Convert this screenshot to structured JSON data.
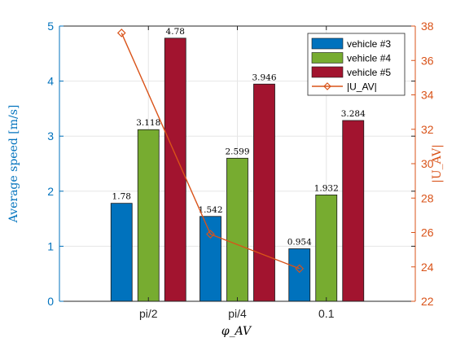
{
  "chart_data": {
    "type": "bar",
    "categories": [
      "pi/2",
      "pi/4",
      "0.1"
    ],
    "series": [
      {
        "name": "vehicle #3",
        "values": [
          1.78,
          1.542,
          0.954
        ],
        "color": "#0072BD"
      },
      {
        "name": "vehicle #4",
        "values": [
          3.118,
          2.599,
          1.932
        ],
        "color": "#77AC30"
      },
      {
        "name": "vehicle #5",
        "values": [
          4.78,
          3.946,
          3.284
        ],
        "color": "#A2142F"
      }
    ],
    "data_labels": [
      [
        "1.78",
        "1.542",
        "0.954"
      ],
      [
        "3.118",
        "2.599",
        "1.932"
      ],
      [
        "4.78",
        "3.946",
        "3.284"
      ]
    ],
    "line_series": {
      "name": "|U_AV|",
      "values": [
        37.6,
        25.9,
        23.9
      ],
      "color": "#D95319",
      "axis": "right"
    },
    "xlabel": "φ_AV",
    "ylabel": "Average speed [m/s]",
    "ylabel_right": "|U_AV|",
    "ylim": [
      0,
      5
    ],
    "ylim_right": [
      22,
      38
    ],
    "yticks": [
      "0",
      "1",
      "2",
      "3",
      "4",
      "5"
    ],
    "yticks_right": [
      "22",
      "24",
      "26",
      "28",
      "30",
      "32",
      "34",
      "36",
      "38"
    ],
    "grid": true,
    "legend_position": "top-right",
    "left_axis_color": "#0072BD",
    "right_axis_color": "#D95319"
  }
}
